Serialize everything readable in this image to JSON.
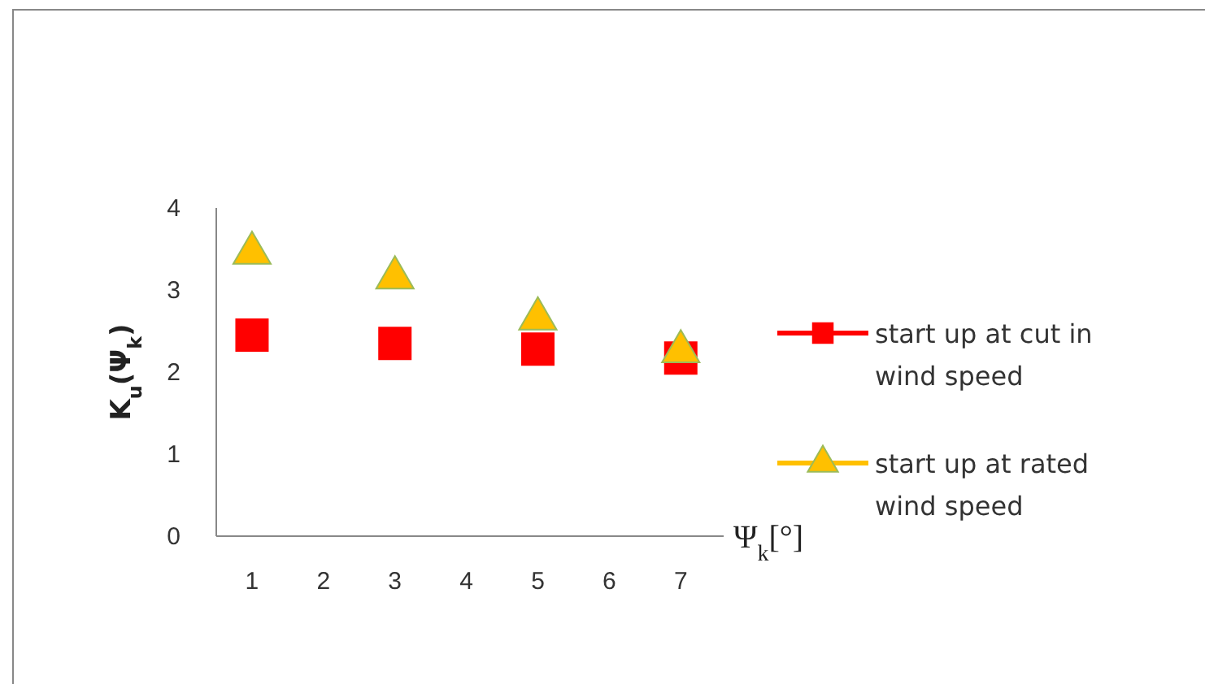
{
  "chart_data": {
    "type": "scatter",
    "xlabel": "Ψ$_{k}$[°]",
    "ylabel": "K$_{u}$(Ψ$_{k}$)",
    "x": [
      1,
      3,
      5,
      7
    ],
    "series": [
      {
        "name": "start up at cut in wind speed",
        "color": "#ff0000",
        "marker": "square",
        "values": [
          2.45,
          2.35,
          2.28,
          2.17
        ]
      },
      {
        "name": "start up at rated wind speed",
        "color": "#ffc000",
        "marker": "triangle",
        "values": [
          3.45,
          3.15,
          2.65,
          2.25
        ]
      }
    ],
    "xlim": [
      0.5,
      7.6
    ],
    "xticks": [
      1,
      2,
      3,
      4,
      5,
      6,
      7
    ],
    "ylim": [
      0,
      4
    ],
    "yticks": [
      0,
      1,
      2,
      3,
      4
    ],
    "grid": false,
    "legend": "right"
  }
}
